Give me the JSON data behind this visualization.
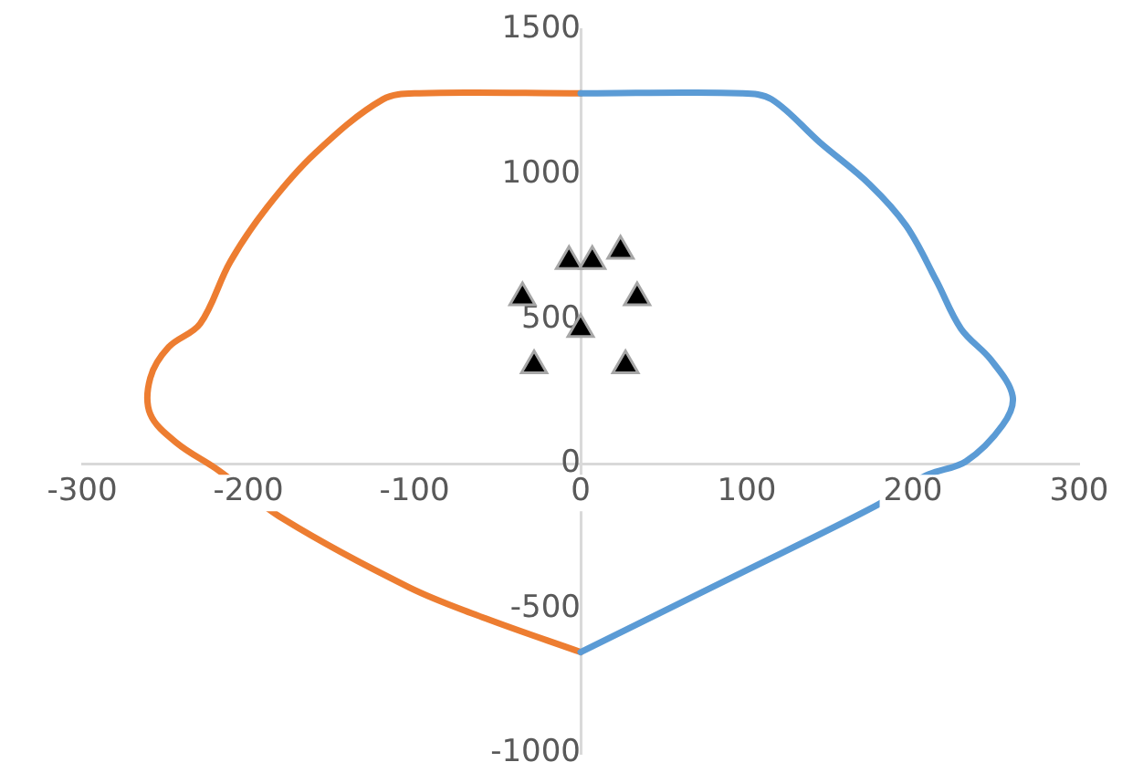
{
  "chart_data": {
    "type": "line",
    "xlim": [
      -300,
      300
    ],
    "xticks": [
      -300,
      -200,
      -100,
      0,
      100,
      200,
      300
    ],
    "ylim": [
      -1000,
      1500
    ],
    "yticks": [
      -1000,
      -500,
      0,
      500,
      1000,
      1500
    ],
    "grid": false,
    "legend": false,
    "line_style": "solid",
    "series": [
      {
        "color": "#5b9bd5",
        "marker": "none",
        "x": [
          0,
          97,
          115,
          144,
          174,
          196,
          214,
          229,
          247,
          260,
          254,
          232,
          208,
          177,
          94,
          0
        ],
        "values": [
          1280,
          1280,
          1259,
          1110,
          965,
          822,
          634,
          466,
          359,
          234,
          134,
          9,
          -40,
          -147,
          -384,
          -650
        ]
      },
      {
        "color": "#ed7d31",
        "marker": "none",
        "x": [
          0,
          -97,
          -119,
          -160,
          -189,
          -211,
          -229,
          -248,
          -259,
          -259,
          -243,
          -218,
          -179,
          -103,
          -57,
          0
        ],
        "values": [
          1280,
          1280,
          1259,
          1072,
          884,
          697,
          484,
          403,
          297,
          172,
          72,
          -22,
          -190,
          -427,
          -534,
          -650
        ]
      },
      {
        "type": "scatter",
        "color": "#000000",
        "marker": "triangle",
        "x": [
          -7,
          7,
          24,
          -35,
          34,
          0,
          -28,
          27
        ],
        "values": [
          700,
          700,
          735,
          575,
          575,
          465,
          340,
          340
        ]
      }
    ]
  }
}
